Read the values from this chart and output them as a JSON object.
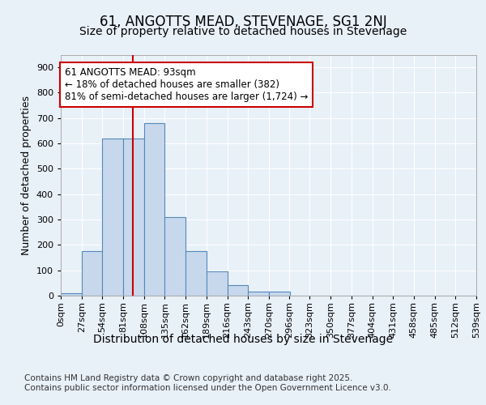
{
  "title1": "61, ANGOTTS MEAD, STEVENAGE, SG1 2NJ",
  "title2": "Size of property relative to detached houses in Stevenage",
  "xlabel": "Distribution of detached houses by size in Stevenage",
  "ylabel": "Number of detached properties",
  "bin_labels": [
    "0sqm",
    "27sqm",
    "54sqm",
    "81sqm",
    "108sqm",
    "135sqm",
    "162sqm",
    "189sqm",
    "216sqm",
    "243sqm",
    "270sqm",
    "296sqm",
    "323sqm",
    "350sqm",
    "377sqm",
    "404sqm",
    "431sqm",
    "458sqm",
    "485sqm",
    "512sqm",
    "539sqm"
  ],
  "bin_edges": [
    0,
    27,
    54,
    81,
    108,
    135,
    162,
    189,
    216,
    243,
    270,
    296,
    323,
    350,
    377,
    404,
    431,
    458,
    485,
    512,
    539
  ],
  "bar_heights": [
    10,
    175,
    620,
    620,
    680,
    310,
    175,
    95,
    40,
    15,
    15,
    0,
    0,
    0,
    0,
    0,
    0,
    0,
    0,
    0
  ],
  "bar_color": "#c8d8ec",
  "bar_edge_color": "#5588bb",
  "property_size": 93,
  "vline_color": "#cc0000",
  "annotation_text": "61 ANGOTTS MEAD: 93sqm\n← 18% of detached houses are smaller (382)\n81% of semi-detached houses are larger (1,724) →",
  "annotation_box_color": "#ffffff",
  "annotation_box_edge": "#cc0000",
  "bg_color": "#e8f0f8",
  "plot_bg_color": "#e8f0f8",
  "ylim": [
    0,
    950
  ],
  "yticks": [
    0,
    100,
    200,
    300,
    400,
    500,
    600,
    700,
    800,
    900
  ],
  "grid_color": "#ffffff",
  "footer_text": "Contains HM Land Registry data © Crown copyright and database right 2025.\nContains public sector information licensed under the Open Government Licence v3.0.",
  "title1_fontsize": 12,
  "title2_fontsize": 10,
  "xlabel_fontsize": 10,
  "ylabel_fontsize": 9,
  "tick_fontsize": 8,
  "annotation_fontsize": 8.5,
  "footer_fontsize": 7.5
}
